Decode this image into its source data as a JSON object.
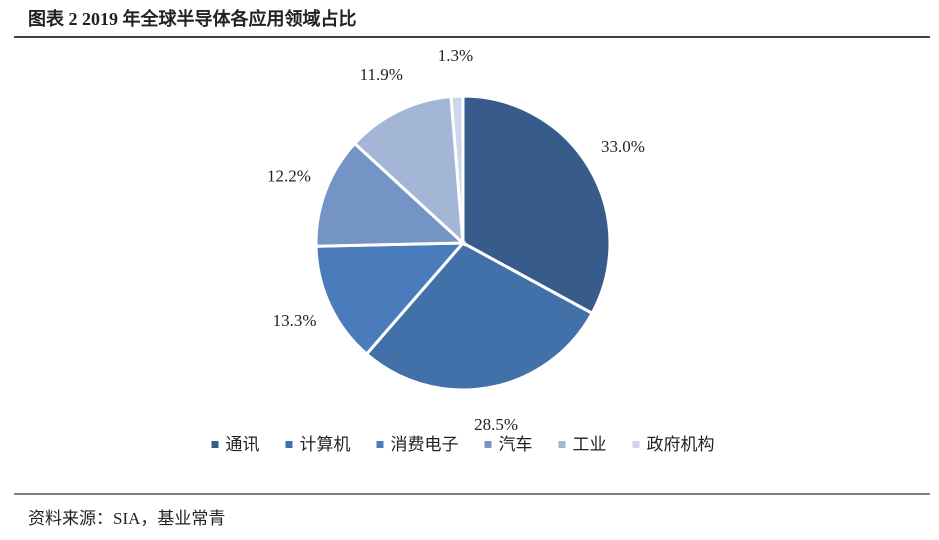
{
  "chart_data": {
    "type": "pie",
    "title": "图表 2 2019 年全球半导体各应用领域占比",
    "categories": [
      "通讯",
      "计算机",
      "消费电子",
      "汽车",
      "工业",
      "政府机构"
    ],
    "values": [
      33.0,
      28.5,
      13.3,
      12.2,
      11.9,
      1.3
    ],
    "value_labels": [
      "33.0%",
      "28.5%",
      "13.3%",
      "12.2%",
      "11.9%",
      "1.3%"
    ],
    "colors": [
      "#375c8c",
      "#4270a9",
      "#4a7bbb",
      "#7394c4",
      "#a3b6d6",
      "#cdd7e9"
    ],
    "legend": "bottom",
    "source": "资料来源：SIA，基业常青"
  }
}
